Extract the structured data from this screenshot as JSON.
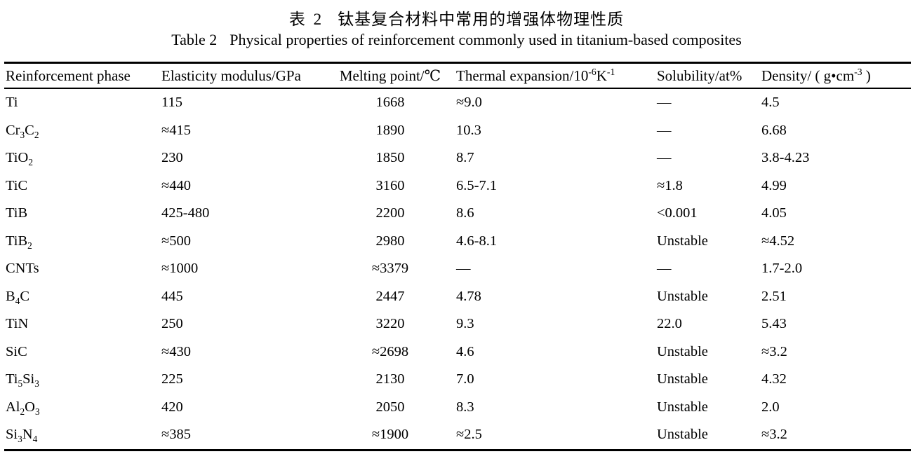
{
  "page": {
    "title_zh": {
      "label": "表 2",
      "text": "钛基复合材料中常用的增强体物理性质"
    },
    "title_en": {
      "label": "Table 2",
      "text": "Physical properties of reinforcement commonly used in titanium-based composites"
    }
  },
  "table": {
    "columns": [
      "Reinforcement phase",
      "Elasticity modulus/GPa",
      "Melting point/℃",
      "Thermal expansion/10^{-6}K^{-1}",
      "Solubility/at%",
      "Density/ ( g•cm^{-3} )"
    ],
    "rows": [
      [
        "Ti",
        "115",
        "1668",
        "≈9.0",
        "—",
        "4.5"
      ],
      [
        "Cr_{3}C_{2}",
        "≈415",
        "1890",
        "10.3",
        "—",
        "6.68"
      ],
      [
        "TiO_{2}",
        "230",
        "1850",
        "8.7",
        "—",
        "3.8-4.23"
      ],
      [
        "TiC",
        "≈440",
        "3160",
        "6.5-7.1",
        "≈1.8",
        "4.99"
      ],
      [
        "TiB",
        "425-480",
        "2200",
        "8.6",
        "<0.001",
        "4.05"
      ],
      [
        "TiB_{2}",
        "≈500",
        "2980",
        "4.6-8.1",
        "Unstable",
        "≈4.52"
      ],
      [
        "CNTs",
        "≈1000",
        "≈3379",
        "—",
        "—",
        "1.7-2.0"
      ],
      [
        "B_{4}C",
        "445",
        "2447",
        "4.78",
        "Unstable",
        "2.51"
      ],
      [
        "TiN",
        "250",
        "3220",
        "9.3",
        "22.0",
        "5.43"
      ],
      [
        "SiC",
        "≈430",
        "≈2698",
        "4.6",
        "Unstable",
        "≈3.2"
      ],
      [
        "Ti_{5}Si_{3}",
        "225",
        "2130",
        "7.0",
        "Unstable",
        "4.32"
      ],
      [
        "Al_{2}O_{3}",
        "420",
        "2050",
        "8.3",
        "Unstable",
        "2.0"
      ],
      [
        "Si_{3}N_{4}",
        "≈385",
        "≈1900",
        "≈2.5",
        "Unstable",
        "≈3.2"
      ]
    ]
  }
}
